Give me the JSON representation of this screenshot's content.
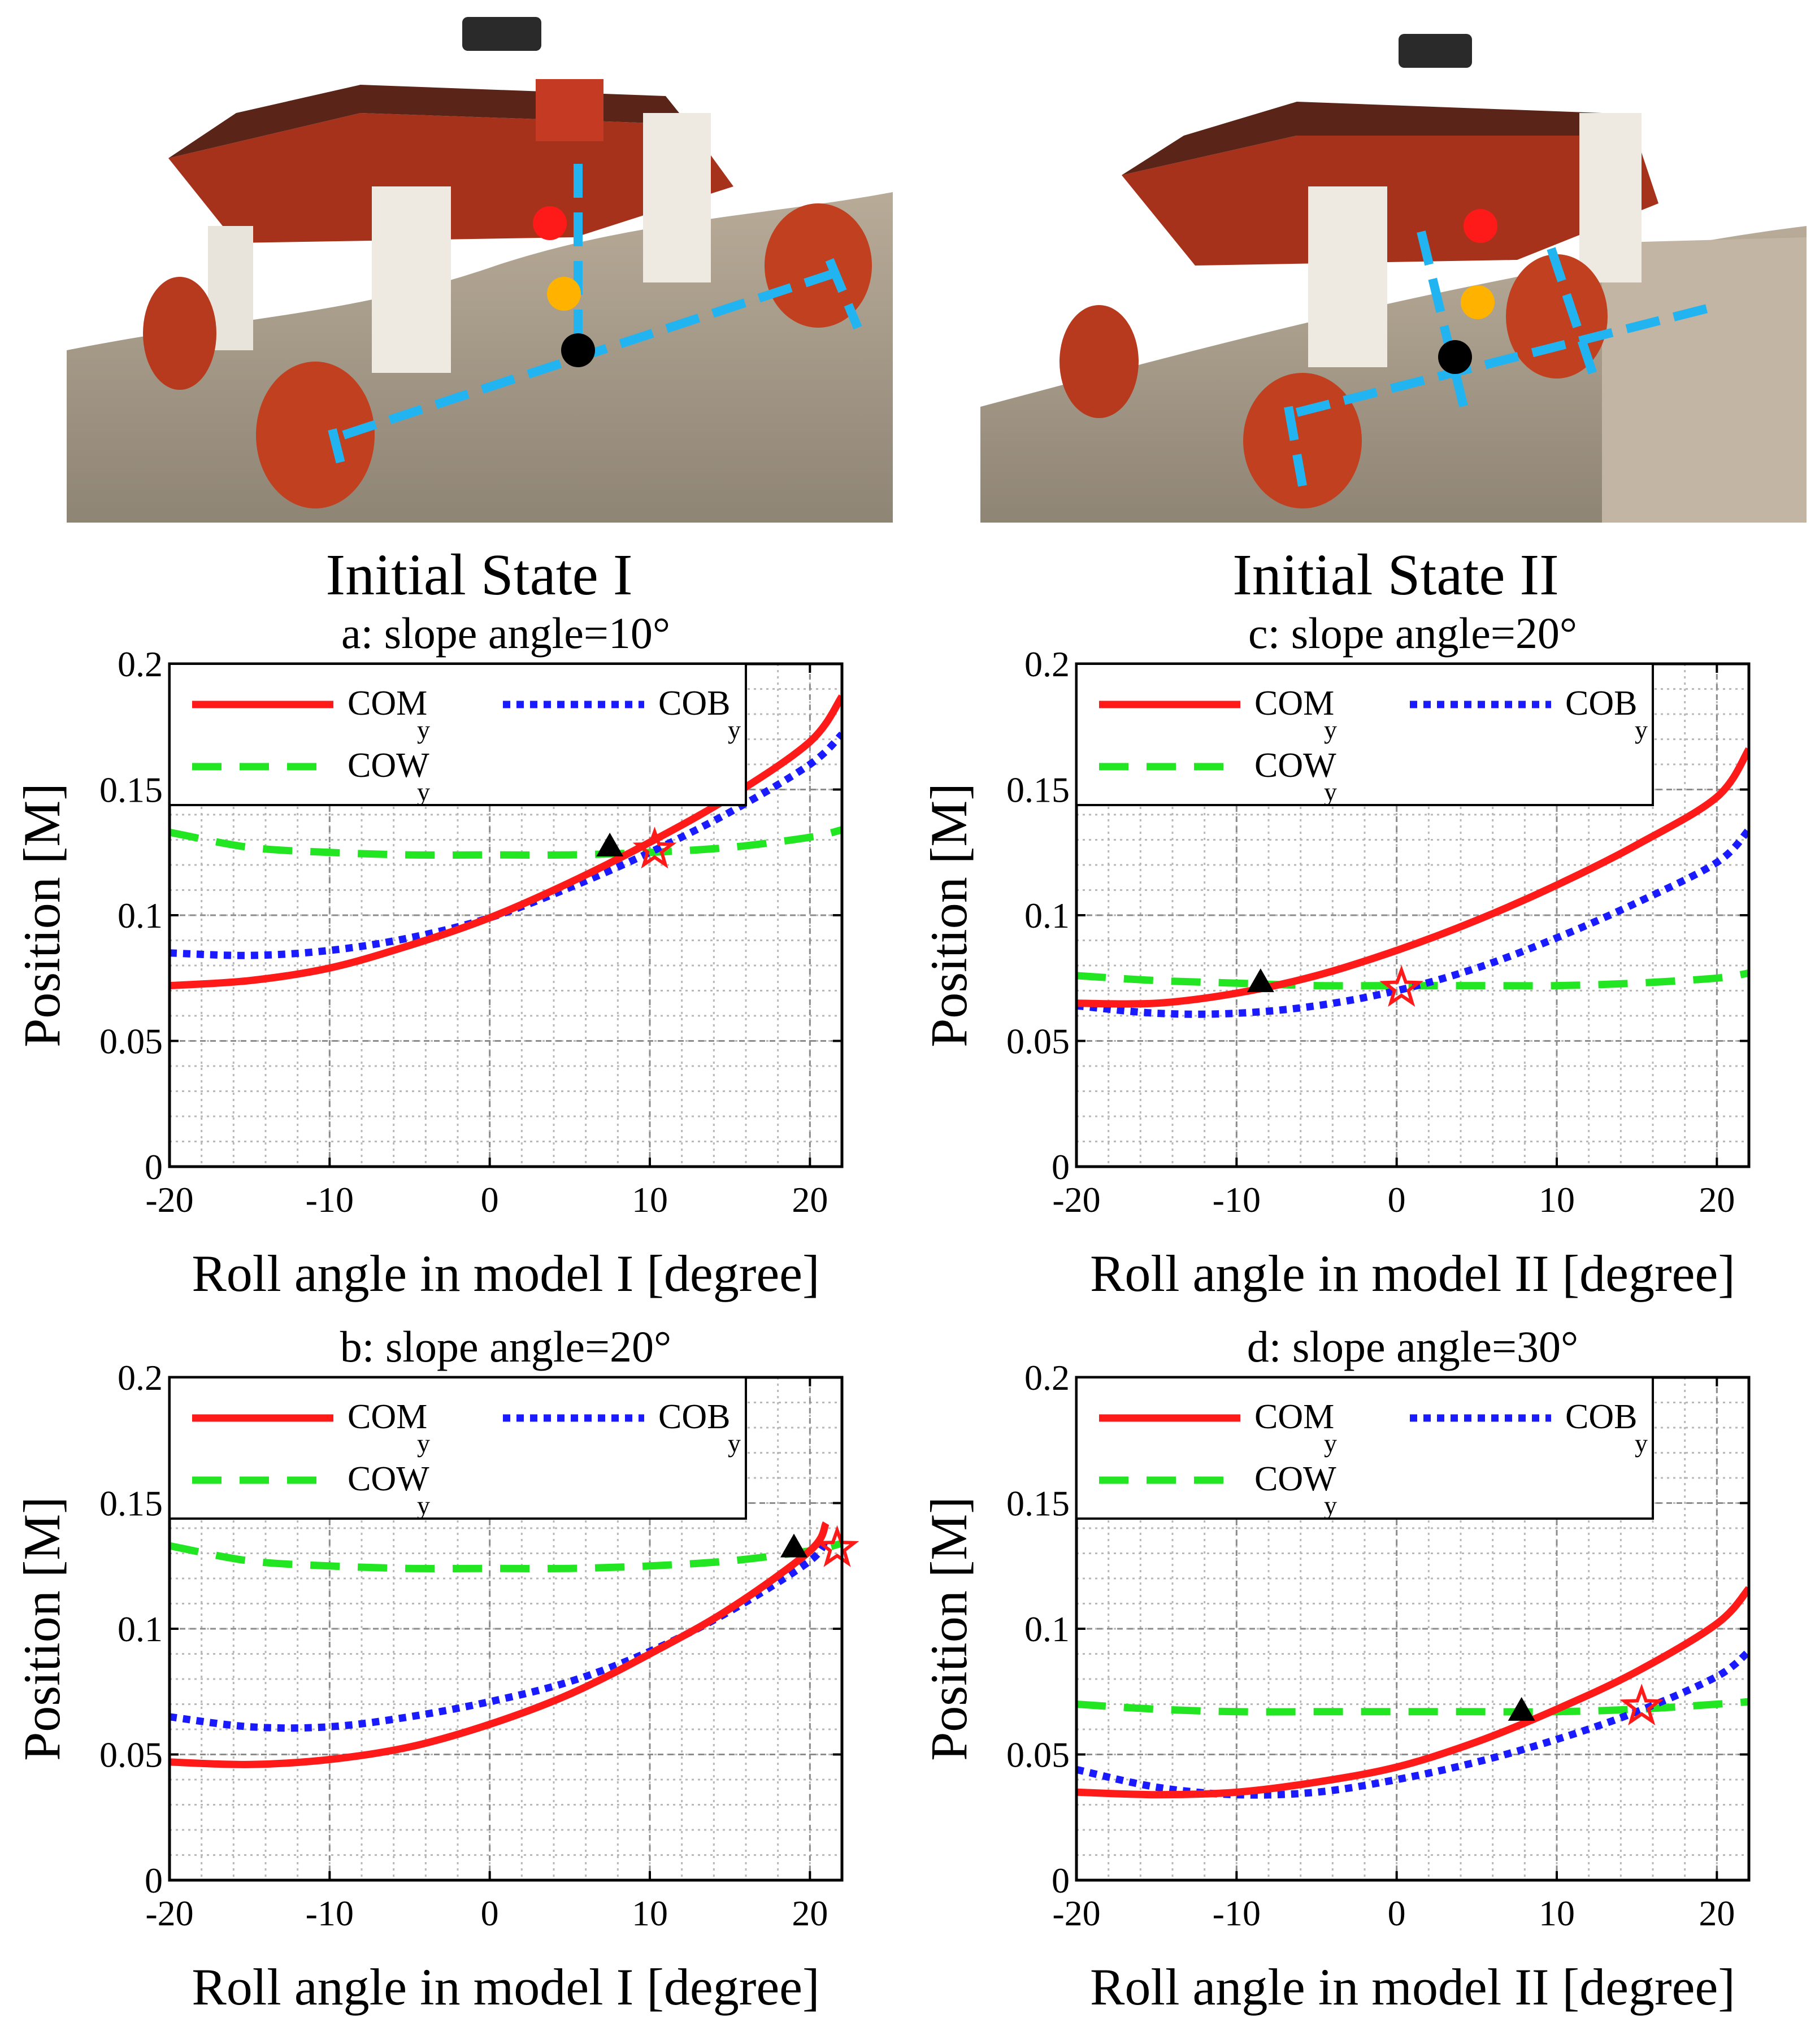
{
  "photos": [
    {
      "label": "Initial State I"
    },
    {
      "label": "Initial State II"
    }
  ],
  "colors": {
    "com": "#ff1a1a",
    "cob": "#1a1aff",
    "cow": "#22e622",
    "triangle": "#000000",
    "star": "#ff1a1a",
    "dashline": "#22b4f0",
    "dot_red": "#ff1a1a",
    "dot_yellow": "#ffb300",
    "dot_black": "#000000"
  },
  "chart_data": [
    {
      "type": "line",
      "title": "a: slope angle=10°",
      "xlabel": "Roll angle in model I [degree]",
      "ylabel": "Position [M]",
      "xlim": [
        -20,
        22
      ],
      "ylim": [
        0,
        0.2
      ],
      "xticks": [
        "-20",
        "-10",
        "0",
        "10",
        "20"
      ],
      "yticks": [
        "0",
        "0.05",
        "0.1",
        "0.15",
        "0.2"
      ],
      "legend": [
        {
          "key": "com",
          "text": "COM",
          "sub": "y"
        },
        {
          "key": "cob",
          "text": "COB",
          "sub": "y"
        },
        {
          "key": "cow",
          "text": "COW",
          "sub": "y"
        }
      ],
      "series": [
        {
          "key": "com",
          "name": "COM_y",
          "x": [
            -20,
            -15,
            -10,
            -5,
            0,
            5,
            10,
            15,
            20,
            22
          ],
          "y": [
            0.072,
            0.074,
            0.079,
            0.088,
            0.099,
            0.113,
            0.129,
            0.147,
            0.169,
            0.187
          ]
        },
        {
          "key": "cob",
          "name": "COB_y",
          "x": [
            -20,
            -15,
            -10,
            -5,
            0,
            5,
            10,
            15,
            20,
            22
          ],
          "y": [
            0.085,
            0.084,
            0.086,
            0.091,
            0.099,
            0.111,
            0.125,
            0.141,
            0.16,
            0.172
          ]
        },
        {
          "key": "cow",
          "name": "COW_y",
          "x": [
            -20,
            -15,
            -10,
            -5,
            0,
            5,
            10,
            15,
            20,
            22
          ],
          "y": [
            0.133,
            0.127,
            0.125,
            0.124,
            0.124,
            0.124,
            0.125,
            0.127,
            0.131,
            0.134
          ]
        }
      ],
      "markers": {
        "triangle": {
          "x": 7.5,
          "y": 0.127
        },
        "star": {
          "x": 10.3,
          "y": 0.126
        }
      }
    },
    {
      "type": "line",
      "title": "b: slope angle=20°",
      "xlabel": "Roll angle in model I [degree]",
      "ylabel": "Position [M]",
      "xlim": [
        -20,
        22
      ],
      "ylim": [
        0,
        0.2
      ],
      "xticks": [
        "-20",
        "-10",
        "0",
        "10",
        "20"
      ],
      "yticks": [
        "0",
        "0.05",
        "0.1",
        "0.15",
        "0.2"
      ],
      "legend": [
        {
          "key": "com",
          "text": "COM",
          "sub": "y"
        },
        {
          "key": "cob",
          "text": "COB",
          "sub": "y"
        },
        {
          "key": "cow",
          "text": "COW",
          "sub": "y"
        }
      ],
      "series": [
        {
          "key": "com",
          "name": "COM_y",
          "x": [
            -20,
            -15,
            -10,
            -5,
            0,
            5,
            10,
            15,
            20,
            21
          ],
          "y": [
            0.047,
            0.046,
            0.048,
            0.053,
            0.062,
            0.074,
            0.09,
            0.108,
            0.131,
            0.142
          ]
        },
        {
          "key": "cob",
          "name": "COB_y",
          "x": [
            -20,
            -15,
            -10,
            -5,
            0,
            5,
            10,
            15,
            20,
            21
          ],
          "y": [
            0.065,
            0.061,
            0.061,
            0.065,
            0.071,
            0.079,
            0.091,
            0.107,
            0.127,
            0.136
          ]
        },
        {
          "key": "cow",
          "name": "COW_y",
          "x": [
            -20,
            -15,
            -10,
            -5,
            0,
            5,
            10,
            15,
            20,
            22
          ],
          "y": [
            0.133,
            0.127,
            0.125,
            0.124,
            0.124,
            0.124,
            0.125,
            0.127,
            0.131,
            0.134
          ]
        }
      ],
      "markers": {
        "triangle": {
          "x": 19.0,
          "y": 0.132
        },
        "star": {
          "x": 21.7,
          "y": 0.132
        }
      }
    },
    {
      "type": "line",
      "title": "c: slope angle=20°",
      "xlabel": "Roll angle in model II [degree]",
      "ylabel": "Position [M]",
      "xlim": [
        -20,
        22
      ],
      "ylim": [
        0,
        0.2
      ],
      "xticks": [
        "-20",
        "-10",
        "0",
        "10",
        "20"
      ],
      "yticks": [
        "0",
        "0.05",
        "0.1",
        "0.15",
        "0.2"
      ],
      "legend": [
        {
          "key": "com",
          "text": "COM",
          "sub": "y"
        },
        {
          "key": "cob",
          "text": "COB",
          "sub": "y"
        },
        {
          "key": "cow",
          "text": "COW",
          "sub": "y"
        }
      ],
      "series": [
        {
          "key": "com",
          "name": "COM_y",
          "x": [
            -20,
            -15,
            -10,
            -5,
            0,
            5,
            10,
            15,
            20,
            22
          ],
          "y": [
            0.065,
            0.065,
            0.069,
            0.076,
            0.086,
            0.098,
            0.112,
            0.128,
            0.147,
            0.166
          ]
        },
        {
          "key": "cob",
          "name": "COB_y",
          "x": [
            -20,
            -15,
            -10,
            -5,
            0,
            5,
            10,
            15,
            20,
            22
          ],
          "y": [
            0.064,
            0.061,
            0.061,
            0.064,
            0.07,
            0.079,
            0.091,
            0.105,
            0.121,
            0.134
          ]
        },
        {
          "key": "cow",
          "name": "COW_y",
          "x": [
            -20,
            -15,
            -10,
            -5,
            0,
            5,
            10,
            15,
            20,
            22
          ],
          "y": [
            0.076,
            0.074,
            0.073,
            0.072,
            0.072,
            0.072,
            0.072,
            0.073,
            0.075,
            0.077
          ]
        }
      ],
      "markers": {
        "triangle": {
          "x": -8.5,
          "y": 0.073
        },
        "star": {
          "x": 0.3,
          "y": 0.071
        }
      }
    },
    {
      "type": "line",
      "title": "d: slope angle=30°",
      "xlabel": "Roll angle in model II [degree]",
      "ylabel": "Position [M]",
      "xlim": [
        -20,
        22
      ],
      "ylim": [
        0,
        0.2
      ],
      "xticks": [
        "-20",
        "-10",
        "0",
        "10",
        "20"
      ],
      "yticks": [
        "0",
        "0.05",
        "0.1",
        "0.15",
        "0.2"
      ],
      "legend": [
        {
          "key": "com",
          "text": "COM",
          "sub": "y"
        },
        {
          "key": "cob",
          "text": "COB",
          "sub": "y"
        },
        {
          "key": "cow",
          "text": "COW",
          "sub": "y"
        }
      ],
      "series": [
        {
          "key": "com",
          "name": "COM_y",
          "x": [
            -20,
            -15,
            -10,
            -5,
            0,
            5,
            10,
            15,
            20,
            22
          ],
          "y": [
            0.035,
            0.034,
            0.035,
            0.039,
            0.045,
            0.055,
            0.068,
            0.083,
            0.102,
            0.116
          ]
        },
        {
          "key": "cob",
          "name": "COB_y",
          "x": [
            -20,
            -15,
            -10,
            -5,
            0,
            5,
            10,
            15,
            20,
            22
          ],
          "y": [
            0.044,
            0.037,
            0.034,
            0.035,
            0.04,
            0.047,
            0.056,
            0.067,
            0.081,
            0.091
          ]
        },
        {
          "key": "cow",
          "name": "COW_y",
          "x": [
            -20,
            -15,
            -10,
            -5,
            0,
            5,
            10,
            15,
            20,
            22
          ],
          "y": [
            0.07,
            0.068,
            0.067,
            0.067,
            0.067,
            0.067,
            0.067,
            0.068,
            0.07,
            0.071
          ]
        }
      ],
      "markers": {
        "triangle": {
          "x": 7.8,
          "y": 0.067
        },
        "star": {
          "x": 15.3,
          "y": 0.069
        }
      }
    }
  ]
}
